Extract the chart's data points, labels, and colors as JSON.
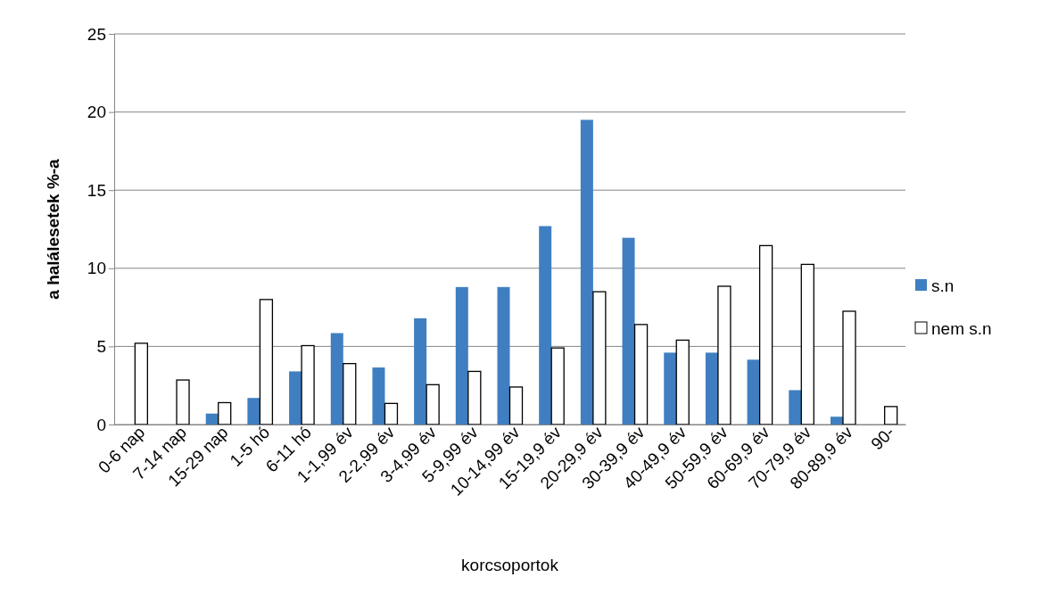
{
  "chart_data": {
    "type": "bar",
    "xlabel": "korcsoportok",
    "ylabel": "a halálesetek %-a",
    "categories": [
      "0-6 nap",
      "7-14 nap",
      "15-29 nap",
      "1-5 hó",
      "6-11 hó",
      "1-1,99 év",
      "2-2,99 év",
      "3-4,99 év",
      "5-9,99 év",
      "10-14,99 év",
      "15-19,9 év",
      "20-29,9 év",
      "30-39,9 év",
      "40-49,9 év",
      "50-59,9 év",
      "60-69,9 év",
      "70-79,9 év",
      "80-89,9 év",
      "90-"
    ],
    "series": [
      {
        "name": "s.n",
        "color": "#3f7fc1",
        "values": [
          0,
          0,
          0.7,
          1.7,
          3.4,
          5.85,
          3.65,
          6.8,
          8.8,
          8.8,
          12.7,
          19.5,
          11.95,
          4.6,
          4.6,
          4.15,
          2.2,
          0.5,
          0
        ]
      },
      {
        "name": "nem s.n",
        "color": "#ffffff",
        "values": [
          5.2,
          2.85,
          1.4,
          8.0,
          5.05,
          3.9,
          1.35,
          2.55,
          3.4,
          2.4,
          4.9,
          8.5,
          6.4,
          5.4,
          8.85,
          11.45,
          10.25,
          7.25,
          1.15
        ]
      }
    ],
    "ylim": [
      0,
      25
    ],
    "yticks": [
      0,
      5,
      10,
      15,
      20,
      25
    ],
    "grid": "y",
    "legend": "right"
  }
}
